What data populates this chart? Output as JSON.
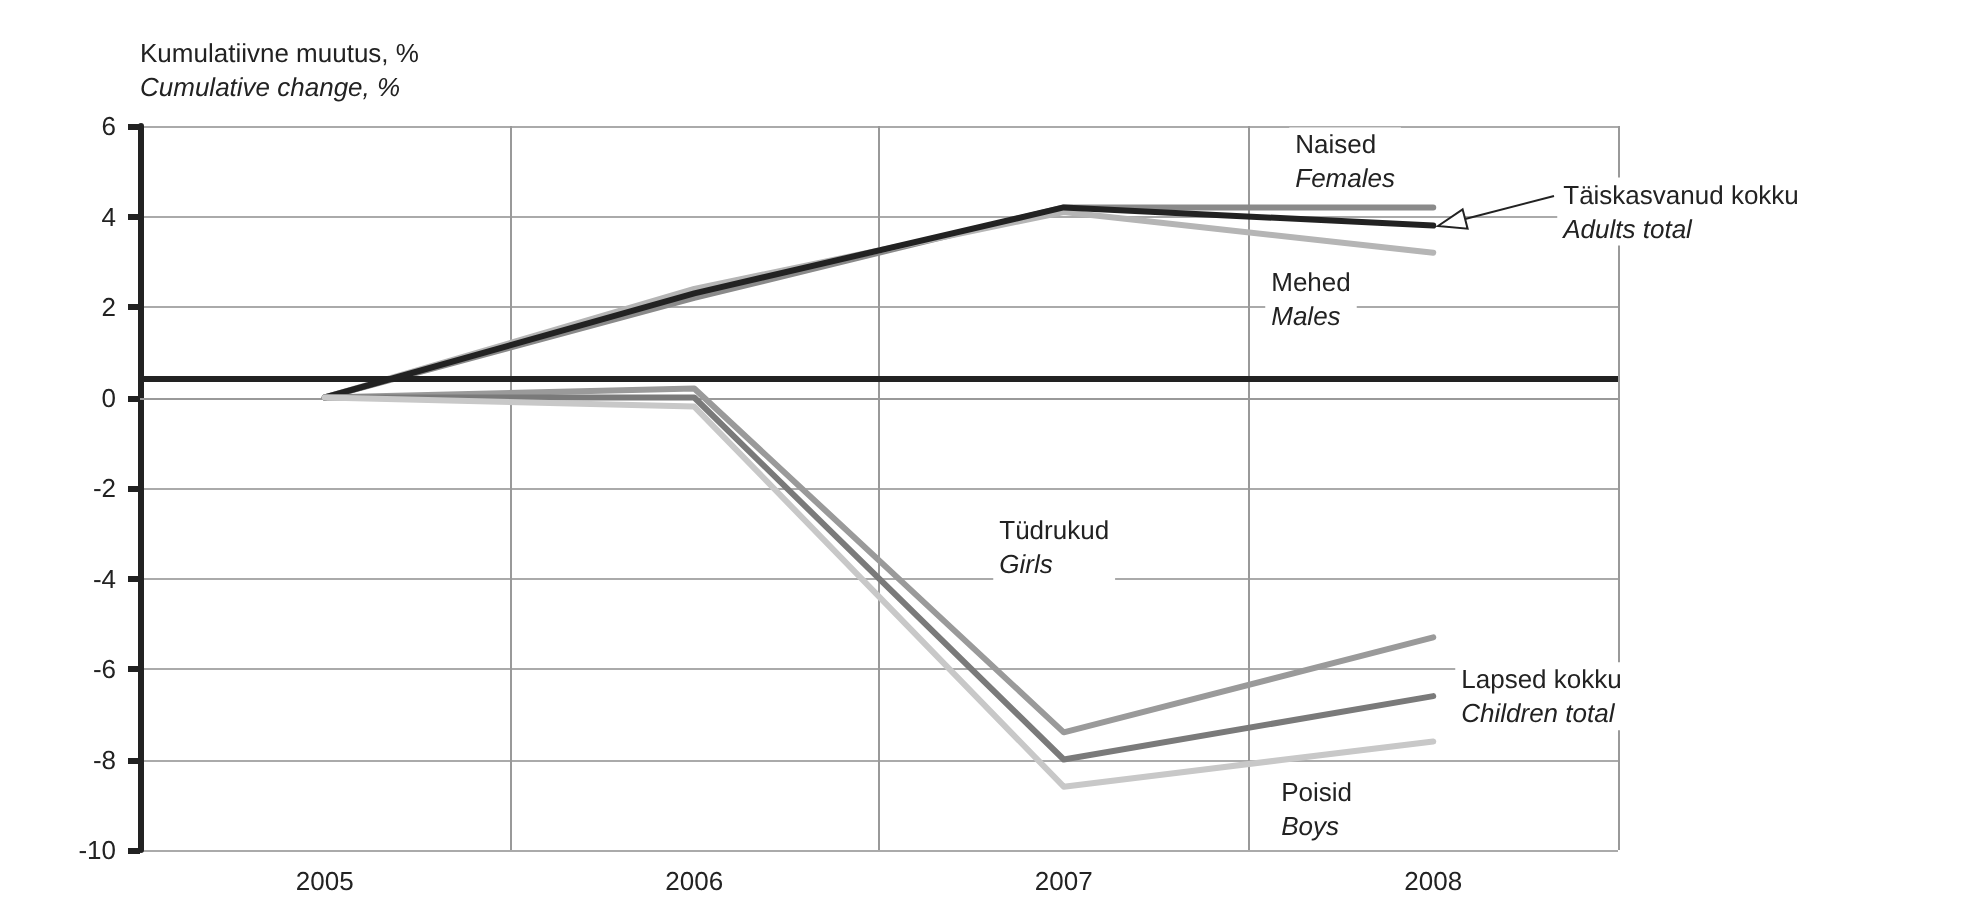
{
  "chart_data": {
    "type": "line",
    "ylabel": "Kumulatiivne muutus, %\nCumulative change, %",
    "categories": [
      "2005",
      "2006",
      "2007",
      "2008"
    ],
    "ylim": [
      -10,
      6
    ],
    "yticks": [
      -10,
      -8,
      -6,
      -4,
      -2,
      0,
      2,
      4,
      6
    ],
    "grid": true,
    "ref_lines": [
      {
        "axis": "y",
        "value": 0.4,
        "color": "#222222"
      }
    ],
    "series": [
      {
        "name": "Naised\nFemales",
        "color": "#8a8a8a",
        "values": [
          0,
          2.2,
          4.2,
          4.2
        ]
      },
      {
        "name": "Mehed\nMales",
        "color": "#b5b5b5",
        "values": [
          0,
          2.4,
          4.1,
          3.2
        ]
      },
      {
        "name": "Täiskasvanud kokku\nAdults total",
        "color": "#222222",
        "values": [
          0,
          2.3,
          4.2,
          3.8
        ]
      },
      {
        "name": "Tüdrukud\nGirls",
        "color": "#9a9a9a",
        "values": [
          0,
          0.2,
          -7.4,
          -5.3
        ]
      },
      {
        "name": "Lapsed kokku\nChildren total",
        "color": "#7a7a7a",
        "values": [
          0,
          0,
          -8,
          -6.6
        ]
      },
      {
        "name": "Poisid\nBoys",
        "color": "#c8c8c8",
        "values": [
          0,
          -0.2,
          -8.6,
          -7.6
        ]
      }
    ]
  }
}
